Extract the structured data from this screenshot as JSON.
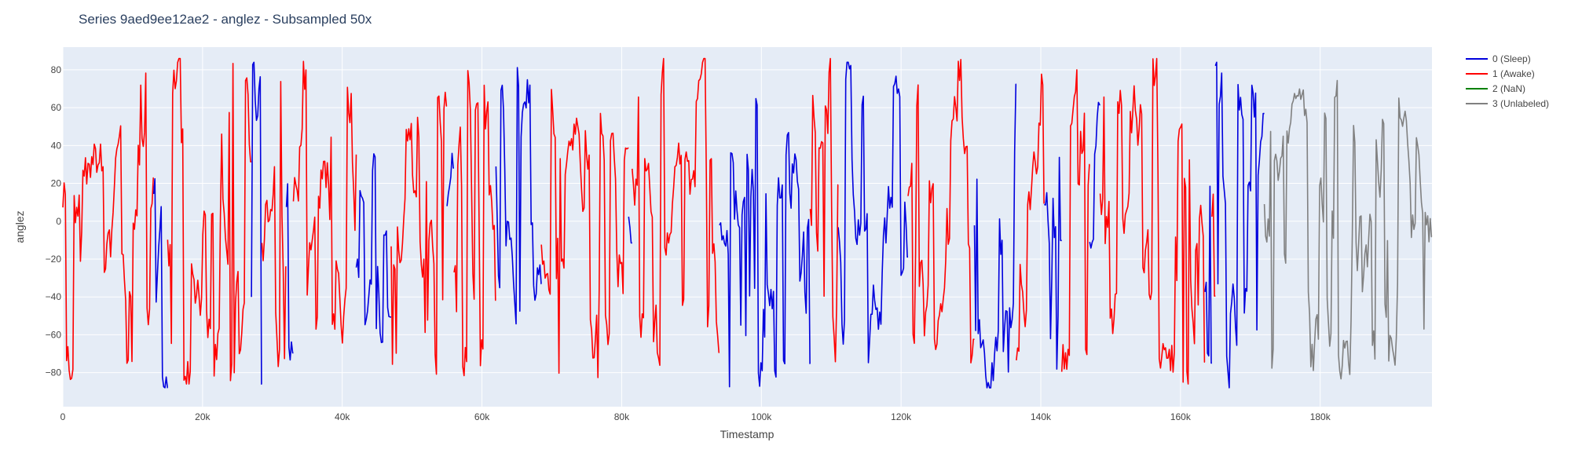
{
  "chart_data": {
    "type": "line",
    "title": "Series 9aed9ee12ae2 - anglez - Subsampled 50x",
    "xlabel": "Timestamp",
    "ylabel": "anglez",
    "xlim": [
      0,
      196000
    ],
    "ylim": [
      -98,
      92
    ],
    "x_ticks": [
      0,
      20000,
      40000,
      60000,
      80000,
      100000,
      120000,
      140000,
      160000,
      180000
    ],
    "x_tick_labels": [
      "0",
      "20k",
      "40k",
      "60k",
      "80k",
      "100k",
      "120k",
      "140k",
      "160k",
      "180k"
    ],
    "y_ticks": [
      -80,
      -60,
      -40,
      -20,
      0,
      20,
      40,
      60,
      80
    ],
    "y_tick_labels": [
      "−80",
      "−60",
      "−40",
      "−20",
      "0",
      "20",
      "40",
      "60",
      "80"
    ],
    "grid": true,
    "legend_position": "top-right",
    "plot_background": "#e5ecf6",
    "series": [
      {
        "name": "0 (Sleep)",
        "color": "#0000dd",
        "segments": [
          [
            13000,
            15000
          ],
          [
            27000,
            28500
          ],
          [
            32000,
            33000
          ],
          [
            42000,
            47000
          ],
          [
            55000,
            56000
          ],
          [
            62000,
            68500
          ],
          [
            81000,
            81500
          ],
          [
            94000,
            107000
          ],
          [
            111000,
            121000
          ],
          [
            130500,
            136500
          ],
          [
            140500,
            143000
          ],
          [
            147000,
            148500
          ],
          [
            163500,
            164500
          ],
          [
            165000,
            172000
          ]
        ],
        "summary_range": [
          -88,
          84
        ]
      },
      {
        "name": "1 (Awake)",
        "color": "#ff0000",
        "segments": [
          [
            0,
            13000
          ],
          [
            15000,
            27000
          ],
          [
            28500,
            32000
          ],
          [
            33000,
            42000
          ],
          [
            47000,
            55000
          ],
          [
            56000,
            62000
          ],
          [
            68500,
            81000
          ],
          [
            81500,
            94000
          ],
          [
            107000,
            111000
          ],
          [
            121000,
            130500
          ],
          [
            136500,
            140500
          ],
          [
            143000,
            147000
          ],
          [
            148500,
            163500
          ],
          [
            164500,
            165000
          ]
        ],
        "summary_range": [
          -86,
          86
        ]
      },
      {
        "name": "2 (NaN)",
        "color": "#008000",
        "segments": [],
        "summary_range": null
      },
      {
        "name": "3 (Unlabeled)",
        "color": "#808080",
        "segments": [
          [
            172000,
            196000
          ]
        ],
        "summary_range": [
          -88,
          84
        ]
      }
    ]
  }
}
